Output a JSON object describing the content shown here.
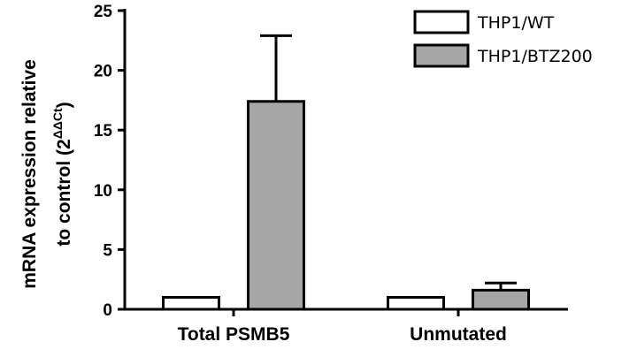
{
  "chart_data": {
    "type": "bar",
    "categories": [
      "Total PSMB5",
      "Unmutated"
    ],
    "series": [
      {
        "name": "THP1/WT",
        "values": [
          1.0,
          1.0
        ],
        "errors": [
          0,
          0
        ],
        "color": "#ffffff"
      },
      {
        "name": "THP1/BTZ200",
        "values": [
          17.4,
          1.6
        ],
        "errors": [
          5.5,
          0.6
        ],
        "color": "#a6a6a6"
      }
    ],
    "ylabel_line1": "mRNA expression relative",
    "ylabel_line2_prefix": "to control (2",
    "ylabel_superscript": "ΔΔCt",
    "ylabel_line2_suffix": ")",
    "ylim": [
      0,
      25
    ],
    "yticks": [
      "0",
      "5",
      "10",
      "15",
      "20",
      "25"
    ],
    "legend_position": "top-right",
    "grid": false
  }
}
